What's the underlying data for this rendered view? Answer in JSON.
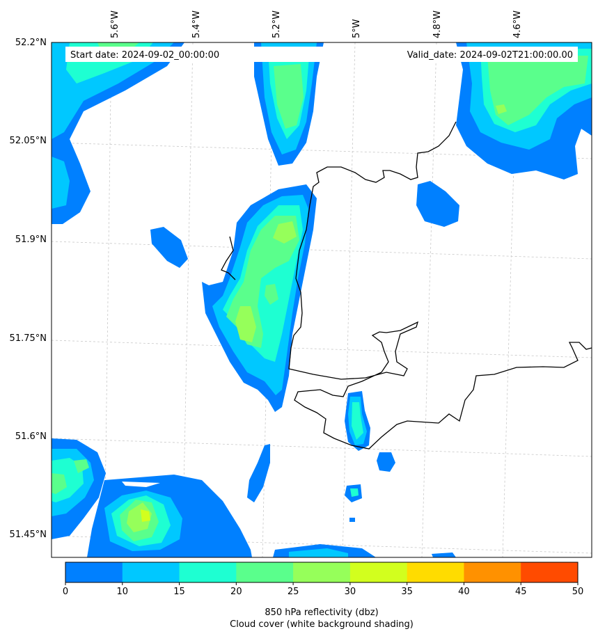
{
  "map": {
    "start_date_label": "Start date: 2024-09-02_00:00:00",
    "valid_date_label": "Valid_date: 2024-09-02T21:00:00.00",
    "lon_ticks": [
      "5.6°W",
      "5.4°W",
      "5.2°W",
      "5°W",
      "4.8°W",
      "4.6°W"
    ],
    "lat_ticks": [
      "52.2°N",
      "52.05°N",
      "51.9°N",
      "51.75°N",
      "51.6°N",
      "51.45°N"
    ],
    "variable": "850 hPa reflectivity",
    "legend_bins": [
      {
        "from": 0,
        "to": 10,
        "color": "#0080ff"
      },
      {
        "from": 10,
        "to": 15,
        "color": "#00c8ff"
      },
      {
        "from": 15,
        "to": 20,
        "color": "#1effd2"
      },
      {
        "from": 20,
        "to": 25,
        "color": "#5aff8c"
      },
      {
        "from": 25,
        "to": 30,
        "color": "#96ff5a"
      },
      {
        "from": 30,
        "to": 35,
        "color": "#d2ff1e"
      },
      {
        "from": 35,
        "to": 40,
        "color": "#ffdc00"
      },
      {
        "from": 40,
        "to": 45,
        "color": "#ff9100"
      },
      {
        "from": 45,
        "to": 50,
        "color": "#ff4b00"
      }
    ]
  },
  "colorbar": {
    "tick_labels": [
      "0",
      "10",
      "15",
      "20",
      "25",
      "30",
      "35",
      "40",
      "45",
      "50"
    ],
    "label_line1": "850 hPa reflectivity (dbz)",
    "label_line2": "Cloud cover (white background shading)"
  }
}
